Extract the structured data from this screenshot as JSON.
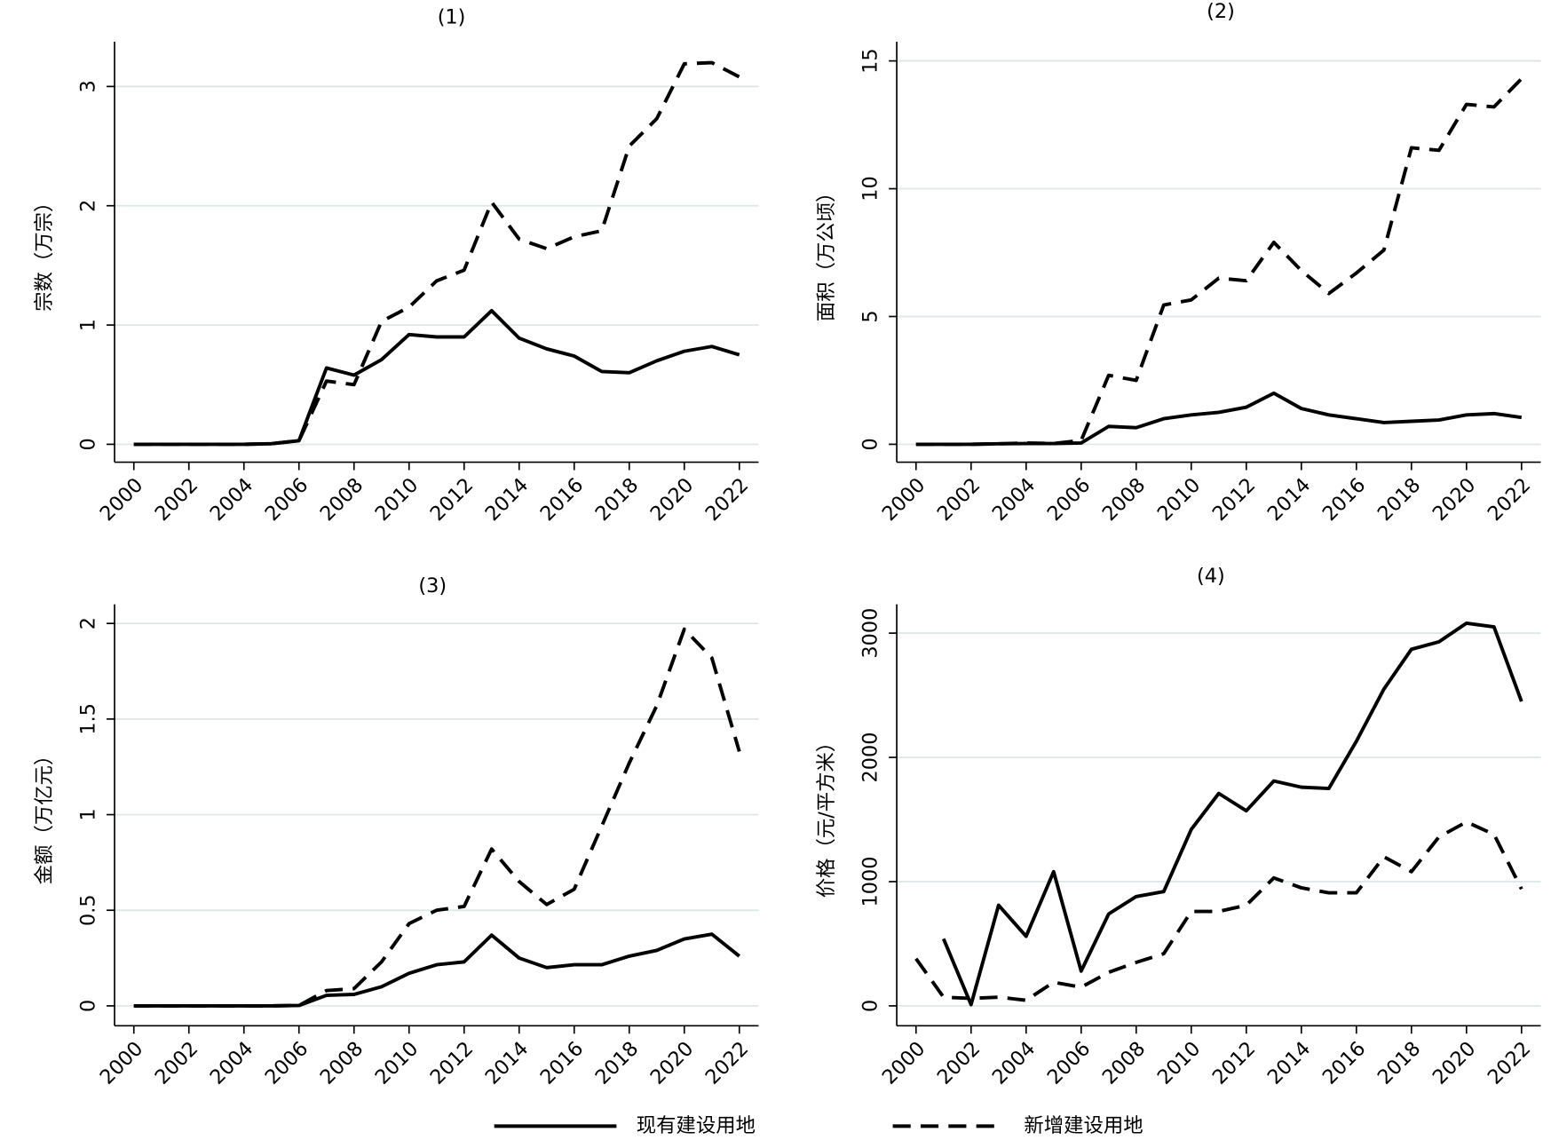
{
  "chart_data": [
    {
      "type": "line",
      "title": "(1)",
      "y_label": "宗数（万宗）",
      "x": [
        2000,
        2001,
        2002,
        2003,
        2004,
        2005,
        2006,
        2007,
        2008,
        2009,
        2010,
        2011,
        2012,
        2013,
        2014,
        2015,
        2016,
        2017,
        2018,
        2019,
        2020,
        2021,
        2022
      ],
      "xlim": [
        1999.3,
        2022.7
      ],
      "xticks": [
        2000,
        2002,
        2004,
        2006,
        2008,
        2010,
        2012,
        2014,
        2016,
        2018,
        2020,
        2022
      ],
      "ylim": [
        -0.15,
        3.375
      ],
      "yticks": [
        0,
        1,
        2,
        3
      ],
      "grid": true,
      "series": [
        {
          "name": "现有建设用地",
          "color": "#000000",
          "dash": "solid",
          "values": [
            0,
            0,
            0,
            0,
            0,
            0.005,
            0.03,
            0.64,
            0.58,
            0.71,
            0.92,
            0.9,
            0.9,
            1.12,
            0.89,
            0.8,
            0.74,
            0.61,
            0.6,
            0.7,
            0.78,
            0.82,
            0.75
          ]
        },
        {
          "name": "新增建设用地",
          "color": "#000000",
          "dash": "dashed",
          "values": [
            0,
            0,
            0,
            0,
            0,
            0.005,
            0.03,
            0.53,
            0.5,
            1.03,
            1.15,
            1.37,
            1.46,
            2.03,
            1.72,
            1.64,
            1.74,
            1.79,
            2.5,
            2.73,
            3.19,
            3.2,
            3.08
          ]
        }
      ]
    },
    {
      "type": "line",
      "title": "(2)",
      "y_label": "面积（万公顷）",
      "x": [
        2000,
        2001,
        2002,
        2003,
        2004,
        2005,
        2006,
        2007,
        2008,
        2009,
        2010,
        2011,
        2012,
        2013,
        2014,
        2015,
        2016,
        2017,
        2018,
        2019,
        2020,
        2021,
        2022
      ],
      "xlim": [
        1999.3,
        2022.7
      ],
      "xticks": [
        2000,
        2002,
        2004,
        2006,
        2008,
        2010,
        2012,
        2014,
        2016,
        2018,
        2020,
        2022
      ],
      "ylim": [
        -0.7,
        15.75
      ],
      "yticks": [
        0,
        5,
        10,
        15
      ],
      "grid": true,
      "series": [
        {
          "name": "现有建设用地",
          "color": "#000000",
          "dash": "solid",
          "values": [
            0,
            0,
            0,
            0.02,
            0.03,
            0.03,
            0.05,
            0.7,
            0.65,
            1.0,
            1.15,
            1.25,
            1.45,
            2.0,
            1.4,
            1.15,
            1.0,
            0.85,
            0.9,
            0.95,
            1.15,
            1.2,
            1.05
          ]
        },
        {
          "name": "新增建设用地",
          "color": "#000000",
          "dash": "dashed",
          "values": [
            0,
            0,
            0,
            0.02,
            0.05,
            0.03,
            0.15,
            2.7,
            2.5,
            5.45,
            5.65,
            6.5,
            6.4,
            7.9,
            6.8,
            5.9,
            6.7,
            7.6,
            11.6,
            11.5,
            13.3,
            13.2,
            14.3
          ]
        }
      ]
    },
    {
      "type": "line",
      "title": "(3)",
      "y_label": "金额（万亿元）",
      "x": [
        2000,
        2001,
        2002,
        2003,
        2004,
        2005,
        2006,
        2007,
        2008,
        2009,
        2010,
        2011,
        2012,
        2013,
        2014,
        2015,
        2016,
        2017,
        2018,
        2019,
        2020,
        2021,
        2022
      ],
      "xlim": [
        1999.3,
        2022.7
      ],
      "xticks": [
        2000,
        2002,
        2004,
        2006,
        2008,
        2010,
        2012,
        2014,
        2016,
        2018,
        2020,
        2022
      ],
      "ylim": [
        -0.104,
        2.1
      ],
      "yticks": [
        0,
        0.5,
        1,
        1.5,
        2
      ],
      "grid": true,
      "series": [
        {
          "name": "现有建设用地",
          "color": "#000000",
          "dash": "solid",
          "values": [
            0,
            0,
            0,
            0,
            0,
            0,
            0.002,
            0.055,
            0.06,
            0.1,
            0.17,
            0.215,
            0.23,
            0.37,
            0.25,
            0.2,
            0.215,
            0.215,
            0.26,
            0.29,
            0.35,
            0.375,
            0.26
          ]
        },
        {
          "name": "新增建设用地",
          "color": "#000000",
          "dash": "dashed",
          "values": [
            0,
            0,
            0,
            0,
            0,
            0,
            0.002,
            0.08,
            0.09,
            0.23,
            0.43,
            0.5,
            0.52,
            0.82,
            0.65,
            0.53,
            0.61,
            0.94,
            1.27,
            1.57,
            1.97,
            1.82,
            1.33
          ]
        }
      ]
    },
    {
      "type": "line",
      "title": "(4)",
      "y_label": "价格（元/平方米）",
      "x": [
        2000,
        2001,
        2002,
        2003,
        2004,
        2005,
        2006,
        2007,
        2008,
        2009,
        2010,
        2011,
        2012,
        2013,
        2014,
        2015,
        2016,
        2017,
        2018,
        2019,
        2020,
        2021,
        2022
      ],
      "xlim": [
        1999.3,
        2022.7
      ],
      "xticks": [
        2000,
        2002,
        2004,
        2006,
        2008,
        2010,
        2012,
        2014,
        2016,
        2018,
        2020,
        2022
      ],
      "ylim": [
        -160,
        3232
      ],
      "yticks": [
        0,
        1000,
        2000,
        3000
      ],
      "grid": true,
      "series": [
        {
          "name": "现有建设用地",
          "color": "#000000",
          "dash": "solid",
          "values": [
            null,
            540,
            10,
            810,
            560,
            1080,
            280,
            740,
            880,
            920,
            1420,
            1710,
            1570,
            1810,
            1760,
            1750,
            2130,
            2550,
            2870,
            2930,
            3080,
            3050,
            2450
          ]
        },
        {
          "name": "新增建设用地",
          "color": "#000000",
          "dash": "dashed",
          "values": [
            380,
            70,
            60,
            70,
            45,
            190,
            150,
            270,
            350,
            420,
            760,
            760,
            810,
            1030,
            950,
            910,
            910,
            1200,
            1080,
            1360,
            1480,
            1380,
            940
          ]
        }
      ]
    }
  ]
}
